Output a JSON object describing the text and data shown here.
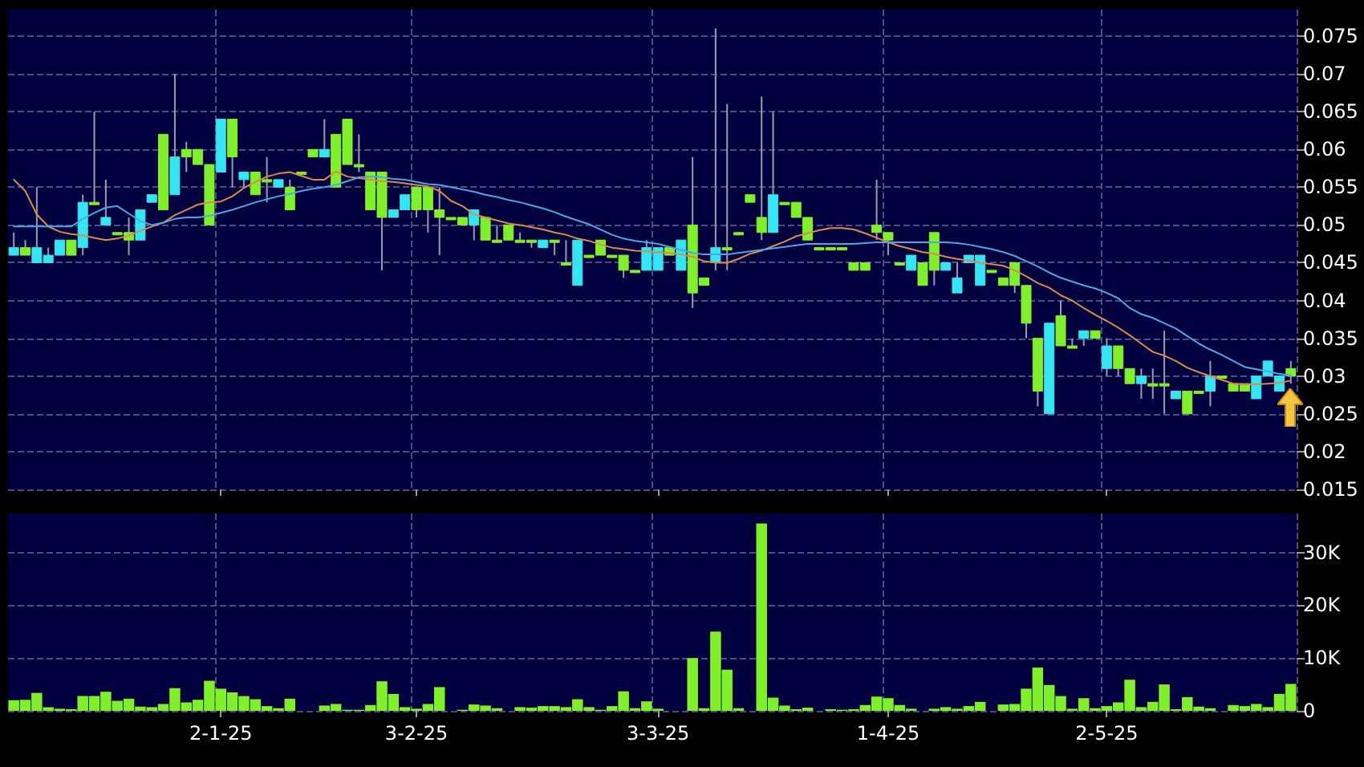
{
  "chart_data": [
    {
      "type": "candlestick",
      "tick_labels": "y",
      "grid": true,
      "categories": [
        null,
        null,
        null,
        null,
        null,
        null,
        null,
        null,
        null,
        null,
        null,
        null,
        null,
        null,
        null,
        null,
        null,
        null,
        null,
        null,
        null,
        null,
        null,
        null,
        null,
        null,
        null,
        null,
        null,
        null,
        null,
        null,
        null,
        null,
        null,
        null,
        null,
        null,
        null,
        null,
        null,
        null,
        null,
        null,
        null,
        null,
        null,
        null,
        null,
        null,
        null,
        null,
        null,
        null,
        null,
        null,
        null,
        null,
        null,
        null,
        null,
        null,
        null,
        null,
        null,
        null,
        null,
        null,
        null,
        null,
        null,
        null,
        null,
        null,
        null,
        null,
        null,
        null,
        null,
        null,
        null,
        null,
        null,
        null,
        null,
        null,
        null,
        null,
        null,
        null,
        null,
        null,
        null,
        null,
        null,
        null,
        null,
        null,
        null,
        null,
        null,
        null,
        null,
        null,
        null,
        null,
        null,
        null,
        null,
        null,
        null,
        null
      ],
      "ohlc": [
        [
          0.047,
          0.049,
          0.046,
          0.046
        ],
        [
          0.046,
          0.048,
          0.046,
          0.047
        ],
        [
          0.047,
          0.055,
          0.045,
          0.045
        ],
        [
          0.046,
          0.047,
          0.045,
          0.045
        ],
        [
          0.048,
          0.048,
          0.046,
          0.046
        ],
        [
          0.046,
          0.048,
          0.046,
          0.048
        ],
        [
          0.053,
          0.054,
          0.046,
          0.047
        ],
        [
          0.053,
          0.065,
          0.053,
          0.053
        ],
        [
          0.051,
          0.056,
          0.05,
          0.05
        ],
        [
          0.049,
          0.049,
          0.049,
          0.049
        ],
        [
          0.048,
          0.051,
          0.046,
          0.049
        ],
        [
          0.052,
          0.052,
          0.048,
          0.048
        ],
        [
          0.054,
          0.054,
          0.053,
          0.053
        ],
        [
          0.052,
          0.062,
          0.052,
          0.062
        ],
        [
          0.059,
          0.07,
          0.054,
          0.054
        ],
        [
          0.059,
          0.061,
          0.057,
          0.06
        ],
        [
          0.058,
          0.06,
          0.058,
          0.06
        ],
        [
          0.05,
          0.058,
          0.05,
          0.058
        ],
        [
          0.064,
          0.064,
          0.057,
          0.057
        ],
        [
          0.059,
          0.064,
          0.055,
          0.064
        ],
        [
          0.057,
          0.057,
          0.055,
          0.056
        ],
        [
          0.054,
          0.057,
          0.054,
          0.057
        ],
        [
          0.056,
          0.059,
          0.053,
          0.056
        ],
        [
          0.056,
          0.056,
          0.055,
          0.055
        ],
        [
          0.052,
          0.056,
          0.052,
          0.055
        ],
        [
          0.057,
          0.057,
          0.057,
          0.057
        ],
        [
          0.059,
          0.06,
          0.059,
          0.06
        ],
        [
          0.06,
          0.064,
          0.059,
          0.059
        ],
        [
          0.055,
          0.062,
          0.055,
          0.062
        ],
        [
          0.058,
          0.064,
          0.058,
          0.064
        ],
        [
          0.058,
          0.062,
          0.057,
          0.058
        ],
        [
          0.052,
          0.057,
          0.052,
          0.057
        ],
        [
          0.051,
          0.057,
          0.044,
          0.057
        ],
        [
          0.052,
          0.052,
          0.051,
          0.051
        ],
        [
          0.054,
          0.054,
          0.052,
          0.052
        ],
        [
          0.052,
          0.055,
          0.051,
          0.055
        ],
        [
          0.052,
          0.055,
          0.049,
          0.055
        ],
        [
          0.051,
          0.055,
          0.046,
          0.052
        ],
        [
          0.051,
          0.051,
          0.051,
          0.051
        ],
        [
          0.05,
          0.051,
          0.05,
          0.051
        ],
        [
          0.052,
          0.052,
          0.048,
          0.05
        ],
        [
          0.048,
          0.051,
          0.048,
          0.051
        ],
        [
          0.048,
          0.05,
          0.048,
          0.048
        ],
        [
          0.048,
          0.05,
          0.048,
          0.05
        ],
        [
          0.048,
          0.049,
          0.048,
          0.048
        ],
        [
          0.048,
          0.048,
          0.047,
          0.048
        ],
        [
          0.048,
          0.048,
          0.047,
          0.047
        ],
        [
          0.048,
          0.048,
          0.046,
          0.048
        ],
        [
          0.045,
          0.048,
          0.045,
          0.045
        ],
        [
          0.048,
          0.048,
          0.042,
          0.042
        ],
        [
          0.046,
          0.046,
          0.046,
          0.046
        ],
        [
          0.046,
          0.048,
          0.046,
          0.048
        ],
        [
          0.046,
          0.046,
          0.046,
          0.046
        ],
        [
          0.044,
          0.046,
          0.043,
          0.046
        ],
        [
          0.044,
          0.044,
          0.044,
          0.044
        ],
        [
          0.047,
          0.048,
          0.044,
          0.044
        ],
        [
          0.047,
          0.047,
          0.044,
          0.044
        ],
        [
          0.046,
          0.047,
          0.046,
          0.047
        ],
        [
          0.048,
          0.048,
          0.044,
          0.044
        ],
        [
          0.041,
          0.059,
          0.039,
          0.05
        ],
        [
          0.042,
          0.043,
          0.042,
          0.043
        ],
        [
          0.047,
          0.076,
          0.044,
          0.045
        ],
        [
          0.047,
          0.066,
          0.044,
          0.047
        ],
        [
          0.049,
          0.049,
          0.049,
          0.049
        ],
        [
          0.053,
          0.054,
          0.053,
          0.054
        ],
        [
          0.049,
          0.067,
          0.048,
          0.051
        ],
        [
          0.054,
          0.065,
          0.049,
          0.049
        ],
        [
          0.053,
          0.053,
          0.053,
          0.053
        ],
        [
          0.051,
          0.053,
          0.051,
          0.053
        ],
        [
          0.048,
          0.051,
          0.048,
          0.051
        ],
        [
          0.047,
          0.047,
          0.047,
          0.047
        ],
        [
          0.047,
          0.047,
          0.047,
          0.047
        ],
        [
          0.047,
          0.047,
          0.047,
          0.047
        ],
        [
          0.044,
          0.045,
          0.044,
          0.045
        ],
        [
          0.044,
          0.045,
          0.044,
          0.045
        ],
        [
          0.049,
          0.056,
          0.048,
          0.05
        ],
        [
          0.048,
          0.049,
          0.046,
          0.049
        ],
        [
          0.045,
          0.045,
          0.045,
          0.045
        ],
        [
          0.046,
          0.046,
          0.044,
          0.044
        ],
        [
          0.042,
          0.045,
          0.042,
          0.045
        ],
        [
          0.044,
          0.049,
          0.042,
          0.049
        ],
        [
          0.045,
          0.045,
          0.044,
          0.044
        ],
        [
          0.043,
          0.045,
          0.041,
          0.041
        ],
        [
          0.046,
          0.046,
          0.045,
          0.045
        ],
        [
          0.046,
          0.046,
          0.042,
          0.042
        ],
        [
          0.044,
          0.044,
          0.044,
          0.044
        ],
        [
          0.042,
          0.043,
          0.042,
          0.043
        ],
        [
          0.042,
          0.045,
          0.041,
          0.045
        ],
        [
          0.037,
          0.042,
          0.035,
          0.042
        ],
        [
          0.028,
          0.035,
          0.026,
          0.035
        ],
        [
          0.037,
          0.037,
          0.025,
          0.025
        ],
        [
          0.034,
          0.04,
          0.034,
          0.038
        ],
        [
          0.034,
          0.035,
          0.034,
          0.034
        ],
        [
          0.036,
          0.036,
          0.034,
          0.035
        ],
        [
          0.035,
          0.036,
          0.035,
          0.036
        ],
        [
          0.034,
          0.035,
          0.03,
          0.031
        ],
        [
          0.031,
          0.034,
          0.03,
          0.034
        ],
        [
          0.029,
          0.031,
          0.029,
          0.031
        ],
        [
          0.03,
          0.031,
          0.027,
          0.029
        ],
        [
          0.029,
          0.031,
          0.027,
          0.029
        ],
        [
          0.029,
          0.036,
          0.025,
          0.029
        ],
        [
          0.028,
          0.028,
          0.027,
          0.027
        ],
        [
          0.025,
          0.028,
          0.025,
          0.028
        ],
        [
          0.028,
          0.028,
          0.028,
          0.028
        ],
        [
          0.03,
          0.032,
          0.026,
          0.028
        ],
        [
          0.03,
          0.03,
          0.03,
          0.03
        ],
        [
          0.028,
          0.029,
          0.028,
          0.029
        ],
        [
          0.028,
          0.029,
          0.028,
          0.029
        ],
        [
          0.03,
          0.03,
          0.027,
          0.027
        ],
        [
          0.032,
          0.032,
          0.03,
          0.03
        ],
        [
          0.03,
          0.03,
          0.028,
          0.028
        ],
        [
          0.03,
          0.032,
          0.029,
          0.031
        ]
      ],
      "colors": [
        "#33e6f2",
        "#7ff02a",
        "#33e6f2",
        "#33e6f2",
        "#33e6f2",
        "#7ff02a",
        "#33e6f2",
        "#7ff02a",
        "#33e6f2",
        "#7ff02a",
        "#7ff02a",
        "#33e6f2",
        "#33e6f2",
        "#7ff02a",
        "#33e6f2",
        "#7ff02a",
        "#7ff02a",
        "#7ff02a",
        "#33e6f2",
        "#7ff02a",
        "#33e6f2",
        "#7ff02a",
        "#7ff02a",
        "#33e6f2",
        "#7ff02a",
        "#7ff02a",
        "#7ff02a",
        "#33e6f2",
        "#7ff02a",
        "#7ff02a",
        "#7ff02a",
        "#7ff02a",
        "#7ff02a",
        "#33e6f2",
        "#33e6f2",
        "#7ff02a",
        "#7ff02a",
        "#7ff02a",
        "#7ff02a",
        "#7ff02a",
        "#33e6f2",
        "#7ff02a",
        "#7ff02a",
        "#7ff02a",
        "#7ff02a",
        "#7ff02a",
        "#33e6f2",
        "#7ff02a",
        "#7ff02a",
        "#33e6f2",
        "#7ff02a",
        "#7ff02a",
        "#7ff02a",
        "#7ff02a",
        "#7ff02a",
        "#33e6f2",
        "#33e6f2",
        "#7ff02a",
        "#33e6f2",
        "#7ff02a",
        "#7ff02a",
        "#33e6f2",
        "#7ff02a",
        "#7ff02a",
        "#7ff02a",
        "#7ff02a",
        "#33e6f2",
        "#7ff02a",
        "#7ff02a",
        "#7ff02a",
        "#7ff02a",
        "#7ff02a",
        "#7ff02a",
        "#7ff02a",
        "#7ff02a",
        "#7ff02a",
        "#7ff02a",
        "#7ff02a",
        "#33e6f2",
        "#7ff02a",
        "#7ff02a",
        "#33e6f2",
        "#33e6f2",
        "#33e6f2",
        "#33e6f2",
        "#7ff02a",
        "#7ff02a",
        "#7ff02a",
        "#7ff02a",
        "#7ff02a",
        "#33e6f2",
        "#7ff02a",
        "#7ff02a",
        "#33e6f2",
        "#7ff02a",
        "#33e6f2",
        "#7ff02a",
        "#7ff02a",
        "#33e6f2",
        "#7ff02a",
        "#7ff02a",
        "#33e6f2",
        "#7ff02a",
        "#7ff02a",
        "#33e6f2",
        "#7ff02a",
        "#7ff02a",
        "#7ff02a",
        "#33e6f2",
        "#33e6f2",
        "#33e6f2",
        "#7ff02a"
      ],
      "series": [
        {
          "type": "line",
          "color": "#e0884a",
          "values": [
            0.056,
            0.0545,
            0.0514,
            0.0498,
            0.0491,
            0.0488,
            0.0486,
            0.0483,
            0.048,
            0.0482,
            0.0486,
            0.0492,
            0.0498,
            0.0503,
            0.0513,
            0.052,
            0.0527,
            0.053,
            0.0531,
            0.0538,
            0.0549,
            0.0557,
            0.0564,
            0.0568,
            0.057,
            0.0565,
            0.056,
            0.056,
            0.0571,
            0.0564,
            0.0562,
            0.056,
            0.0558,
            0.0557,
            0.0555,
            0.0553,
            0.0551,
            0.0545,
            0.0532,
            0.0525,
            0.0514,
            0.051,
            0.0506,
            0.0502,
            0.05,
            0.0497,
            0.0494,
            0.049,
            0.0487,
            0.0482,
            0.0479,
            0.0474,
            0.047,
            0.0468,
            0.0466,
            0.0465,
            0.0464,
            0.0463,
            0.0461,
            0.0458,
            0.0452,
            0.045,
            0.045,
            0.0455,
            0.0462,
            0.0466,
            0.0472,
            0.0478,
            0.0485,
            0.0489,
            0.0493,
            0.0496,
            0.0496,
            0.0494,
            0.0489,
            0.0483,
            0.0477,
            0.0472,
            0.0468,
            0.0464,
            0.0462,
            0.0458,
            0.0455,
            0.0453,
            0.045,
            0.0448,
            0.0446,
            0.044,
            0.0432,
            0.0423,
            0.0417,
            0.0407,
            0.04,
            0.039,
            0.0381,
            0.0373,
            0.0364,
            0.0354,
            0.0343,
            0.0332,
            0.0327,
            0.032,
            0.0311,
            0.0305,
            0.03,
            0.0295,
            0.029,
            0.0289,
            0.0289,
            0.029,
            0.0291,
            0.0294
          ]
        },
        {
          "type": "line",
          "color": "#4aa8e8",
          "values": [
            0.0498,
            0.0498,
            0.0498,
            0.0498,
            0.0498,
            0.0498,
            0.0508,
            0.0516,
            0.0523,
            0.0525,
            0.0515,
            0.0505,
            0.05,
            0.0503,
            0.0508,
            0.051,
            0.051,
            0.0512,
            0.0516,
            0.052,
            0.0525,
            0.053,
            0.0534,
            0.0538,
            0.0541,
            0.0545,
            0.0548,
            0.055,
            0.0553,
            0.0558,
            0.0563,
            0.0564,
            0.0563,
            0.0561,
            0.056,
            0.0557,
            0.0554,
            0.0553,
            0.055,
            0.0547,
            0.0544,
            0.054,
            0.0537,
            0.0533,
            0.053,
            0.0526,
            0.0522,
            0.0517,
            0.0511,
            0.0506,
            0.0501,
            0.0494,
            0.0487,
            0.0482,
            0.0479,
            0.0477,
            0.0475,
            0.0471,
            0.0467,
            0.0463,
            0.0461,
            0.0461,
            0.0461,
            0.0463,
            0.0465,
            0.0467,
            0.0469,
            0.0471,
            0.0473,
            0.0475,
            0.0475,
            0.0475,
            0.0475,
            0.0475,
            0.0476,
            0.0477,
            0.0477,
            0.0477,
            0.0477,
            0.0477,
            0.0477,
            0.0477,
            0.0476,
            0.0474,
            0.0471,
            0.0468,
            0.0464,
            0.0459,
            0.0452,
            0.0445,
            0.0437,
            0.043,
            0.0425,
            0.042,
            0.0416,
            0.041,
            0.0403,
            0.039,
            0.0382,
            0.0377,
            0.037,
            0.0363,
            0.0353,
            0.0343,
            0.0335,
            0.0328,
            0.032,
            0.0312,
            0.0309,
            0.0306,
            0.0303,
            0.0301
          ]
        }
      ],
      "ylim": [
        0.015,
        0.0785
      ],
      "yticks": [
        0.015,
        0.02,
        0.025,
        0.03,
        0.035,
        0.04,
        0.045,
        0.05,
        0.055,
        0.06,
        0.065,
        0.07,
        0.075
      ]
    },
    {
      "type": "bar",
      "grid": true,
      "color": "#7ff02a",
      "categories": [
        null,
        null,
        null,
        null,
        null,
        null,
        null,
        null,
        null,
        null,
        null,
        null,
        null,
        null,
        null,
        null,
        null,
        null,
        "2-1-25",
        null,
        null,
        null,
        null,
        null,
        null,
        null,
        null,
        null,
        null,
        null,
        null,
        null,
        null,
        null,
        null,
        "3-2-25",
        null,
        null,
        null,
        null,
        null,
        null,
        null,
        null,
        null,
        null,
        null,
        null,
        null,
        null,
        null,
        null,
        null,
        null,
        null,
        null,
        "3-3-25",
        null,
        null,
        null,
        null,
        null,
        null,
        null,
        null,
        null,
        null,
        null,
        null,
        null,
        null,
        null,
        null,
        null,
        null,
        null,
        "1-4-25",
        null,
        null,
        null,
        null,
        null,
        null,
        null,
        null,
        null,
        null,
        null,
        null,
        null,
        null,
        null,
        null,
        null,
        null,
        "2-5-25",
        null,
        null,
        null,
        null,
        null,
        null,
        null,
        null,
        null,
        null,
        null,
        null,
        null,
        null,
        null,
        null
      ],
      "values": [
        2000,
        2100,
        3400,
        700,
        400,
        300,
        2800,
        2800,
        3600,
        1900,
        2300,
        800,
        700,
        1300,
        4300,
        1600,
        2100,
        5700,
        4200,
        3500,
        2800,
        2200,
        900,
        500,
        2300,
        0,
        0,
        1000,
        1300,
        200,
        200,
        1100,
        5600,
        3200,
        700,
        400,
        1300,
        4500,
        0,
        200,
        1200,
        1000,
        500,
        0,
        700,
        600,
        900,
        900,
        700,
        2200,
        700,
        200,
        900,
        3700,
        500,
        1800,
        400,
        0,
        0,
        10000,
        500,
        15000,
        7800,
        500,
        0,
        35500,
        2500,
        1000,
        300,
        600,
        0,
        300,
        200,
        300,
        1100,
        2700,
        2400,
        1100,
        400,
        0,
        400,
        700,
        400,
        900,
        1700,
        0,
        1200,
        1300,
        4200,
        8200,
        4900,
        2800,
        400,
        2400,
        500,
        900,
        1600,
        5900,
        700,
        1700,
        5000,
        300,
        2600,
        800,
        500,
        0,
        1100,
        900,
        1300,
        700,
        3200,
        5100
      ],
      "ylim": [
        0,
        37400
      ],
      "yticks": [
        0,
        {
          "value": 10000,
          "label": "10K"
        },
        {
          "value": 20000,
          "label": "20K"
        },
        {
          "value": 30000,
          "label": "30K"
        }
      ]
    }
  ]
}
